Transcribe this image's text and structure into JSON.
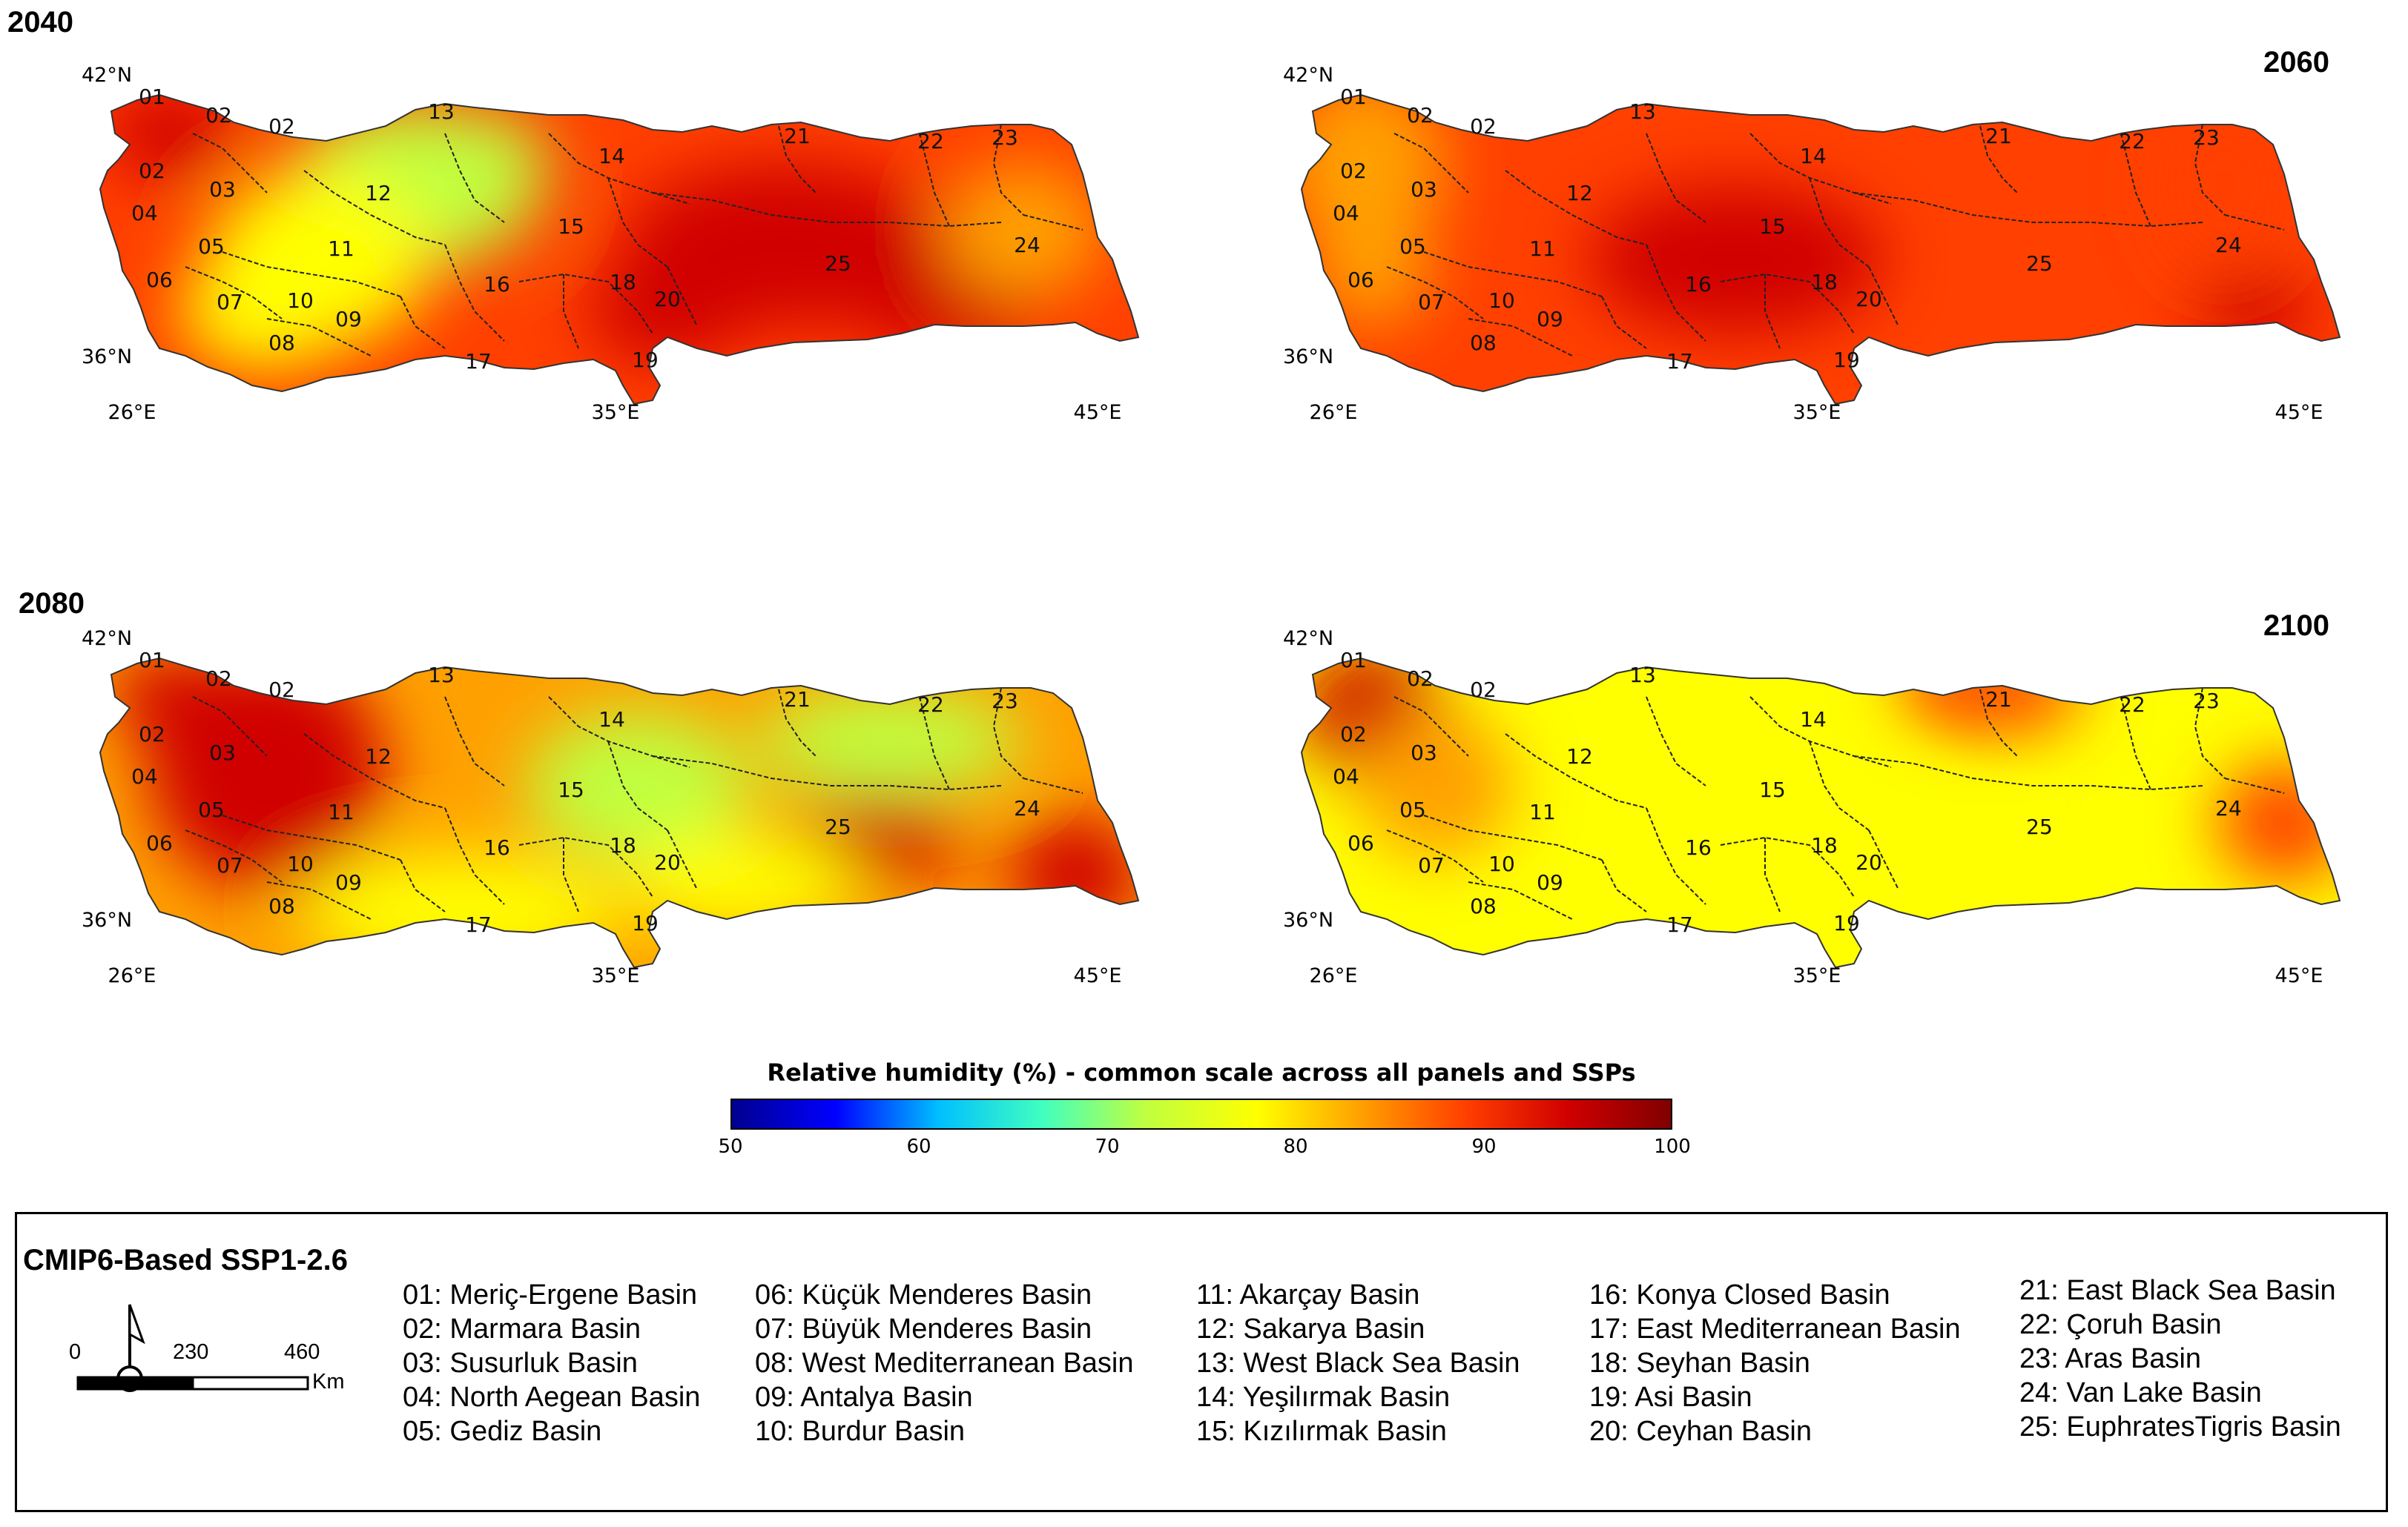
{
  "panels": [
    {
      "year": "2040",
      "top_left_cell": "2040"
    },
    {
      "year": "2060"
    },
    {
      "year": "2080"
    },
    {
      "year": "2100"
    }
  ],
  "axis_labels": {
    "lat_north": "42°N",
    "lat_south": "36°N",
    "lon_west": "26°E",
    "lon_mid": "35°E",
    "lon_east": "45°E"
  },
  "basin_numbers": [
    "01",
    "02",
    "03",
    "04",
    "05",
    "06",
    "07",
    "08",
    "09",
    "10",
    "11",
    "12",
    "13",
    "14",
    "15",
    "16",
    "17",
    "18",
    "19",
    "20",
    "21",
    "22",
    "23",
    "24",
    "25"
  ],
  "colorbar": {
    "title": "Relative humidity (%) - common scale across all panels and SSPs",
    "ticks": [
      "50",
      "60",
      "70",
      "80",
      "90",
      "100"
    ],
    "colors": [
      "#00008f",
      "#0000ff",
      "#00bfff",
      "#40ffc0",
      "#c0ff40",
      "#ffff00",
      "#ffa000",
      "#ff4000",
      "#d00000",
      "#800000"
    ]
  },
  "legend": {
    "title": "CMIP6-Based SSP1-2.6",
    "scale_labels": [
      "0",
      "230",
      "460"
    ],
    "scale_unit": "Km",
    "basins": [
      "01: Meriç-Ergene Basin",
      "02: Marmara Basin",
      "03: Susurluk Basin",
      "04: North Aegean Basin",
      "05: Gediz Basin",
      "06: Küçük Menderes Basin",
      "07: Büyük Menderes Basin",
      "08: West Mediterranean Basin",
      "09: Antalya Basin",
      "10: Burdur Basin",
      "11: Akarçay Basin",
      "12: Sakarya Basin",
      "13: West Black Sea Basin",
      "14: Yeşilırmak Basin",
      "15: Kızılırmak Basin",
      "16: Konya Closed Basin",
      "17: East Mediterranean Basin",
      "18: Seyhan Basin",
      "19: Asi Basin",
      "20: Ceyhan Basin",
      "21: East Black Sea Basin",
      "22: Çoruh Basin",
      "23: Aras Basin",
      "24: Van Lake Basin",
      "25: EuphratesTigris Basin"
    ]
  },
  "chart_data": {
    "type": "heatmap",
    "title": "Relative humidity (%) - common scale across all panels and SSPs",
    "scenario": "CMIP6-Based SSP1-2.6",
    "value_range": [
      50,
      100
    ],
    "panels": [
      {
        "year": "2040",
        "high_basins": [
          "01",
          "02",
          "18",
          "20",
          "25"
        ],
        "low_basins": [
          "12",
          "13"
        ],
        "approx_range": [
          70,
          95
        ]
      },
      {
        "year": "2060",
        "high_basins": [
          "12",
          "15",
          "16",
          "18",
          "25"
        ],
        "low_basins": [
          "01",
          "04",
          "06"
        ],
        "approx_range": [
          80,
          95
        ]
      },
      {
        "year": "2080",
        "high_basins": [
          "01",
          "03",
          "24",
          "25"
        ],
        "low_basins": [
          "14",
          "15",
          "21",
          "22"
        ],
        "approx_range": [
          70,
          95
        ]
      },
      {
        "year": "2100",
        "high_basins": [
          "01",
          "14",
          "24"
        ],
        "low_basins": [
          "12",
          "15",
          "16",
          "17"
        ],
        "approx_range": [
          70,
          92
        ]
      }
    ]
  }
}
